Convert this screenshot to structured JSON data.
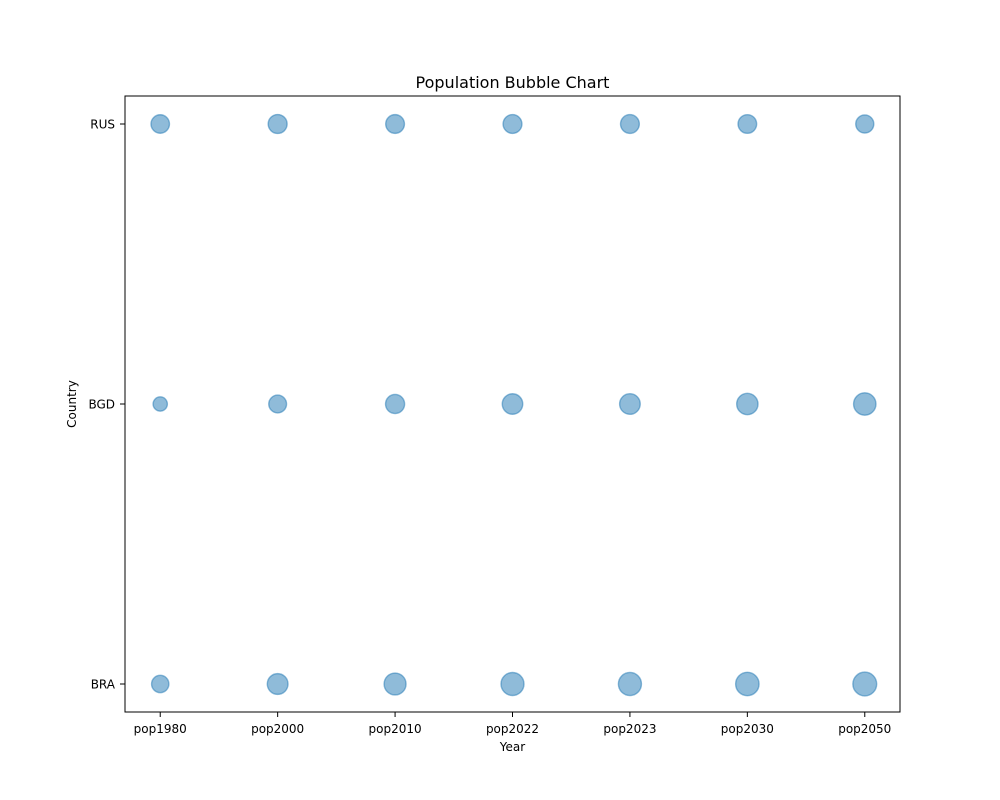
{
  "chart_data": {
    "type": "scatter",
    "title": "Population Bubble Chart",
    "xlabel": "Year",
    "ylabel": "Country",
    "categories": [
      "pop1980",
      "pop2000",
      "pop2010",
      "pop2022",
      "pop2023",
      "pop2030",
      "pop2050"
    ],
    "y_categories": [
      "BRA",
      "BGD",
      "RUS"
    ],
    "grid": false,
    "legend": "none",
    "bubble_color": "#1f77b4",
    "bubble_alpha": 0.5,
    "points": [
      {
        "x": "pop1980",
        "y": "BRA",
        "size": 122
      },
      {
        "x": "pop2000",
        "y": "BRA",
        "size": 175
      },
      {
        "x": "pop2010",
        "y": "BRA",
        "size": 196
      },
      {
        "x": "pop2022",
        "y": "BRA",
        "size": 215
      },
      {
        "x": "pop2023",
        "y": "BRA",
        "size": 216
      },
      {
        "x": "pop2030",
        "y": "BRA",
        "size": 223
      },
      {
        "x": "pop2050",
        "y": "BRA",
        "size": 231
      },
      {
        "x": "pop1980",
        "y": "BGD",
        "size": 83
      },
      {
        "x": "pop2000",
        "y": "BGD",
        "size": 129
      },
      {
        "x": "pop2010",
        "y": "BGD",
        "size": 148
      },
      {
        "x": "pop2022",
        "y": "BGD",
        "size": 171
      },
      {
        "x": "pop2023",
        "y": "BGD",
        "size": 173
      },
      {
        "x": "pop2030",
        "y": "BGD",
        "size": 185
      },
      {
        "x": "pop2050",
        "y": "BGD",
        "size": 204
      },
      {
        "x": "pop1980",
        "y": "RUS",
        "size": 139
      },
      {
        "x": "pop2000",
        "y": "RUS",
        "size": 146
      },
      {
        "x": "pop2010",
        "y": "RUS",
        "size": 143
      },
      {
        "x": "pop2022",
        "y": "RUS",
        "size": 145
      },
      {
        "x": "pop2023",
        "y": "RUS",
        "size": 144
      },
      {
        "x": "pop2030",
        "y": "RUS",
        "size": 141
      },
      {
        "x": "pop2050",
        "y": "RUS",
        "size": 133
      }
    ]
  }
}
